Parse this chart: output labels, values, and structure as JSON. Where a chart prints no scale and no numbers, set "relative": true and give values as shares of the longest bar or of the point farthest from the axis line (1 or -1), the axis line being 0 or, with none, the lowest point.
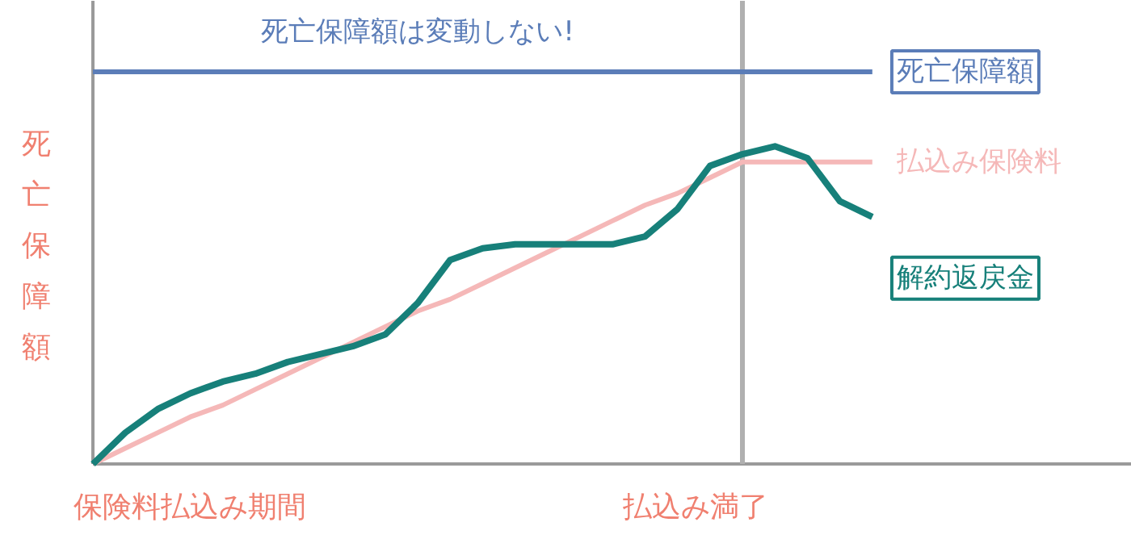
{
  "chart_data": {
    "type": "line",
    "relative": true,
    "ylabel": "死亡保障額",
    "xlabel": "保険料払込み期間",
    "annotations": [
      "死亡保障額は変動しない!",
      "払込み満了"
    ],
    "categories": [
      null,
      null,
      null,
      null,
      null,
      null,
      null,
      null,
      null,
      null,
      null,
      null,
      null,
      null,
      null,
      null,
      null,
      null,
      null,
      null,
      null,
      null,
      null,
      null,
      null
    ],
    "series": [
      {
        "name": "死亡保障額",
        "color": "#5b7db8",
        "values": [
          1,
          1,
          1,
          1,
          1,
          1,
          1,
          1,
          1,
          1,
          1,
          1,
          1,
          1,
          1,
          1,
          1,
          1,
          1,
          1,
          1,
          1,
          1,
          1,
          1
        ]
      },
      {
        "name": "払込み保険料",
        "color": "#f5b8b8",
        "values": [
          0,
          0.04,
          0.08,
          0.12,
          0.15,
          0.19,
          0.23,
          0.27,
          0.31,
          0.35,
          0.39,
          0.42,
          0.46,
          0.5,
          0.54,
          0.58,
          0.62,
          0.66,
          0.69,
          0.73,
          0.77,
          0.77,
          0.77,
          0.77,
          0.77
        ]
      },
      {
        "name": "解約返戻金",
        "color": "#17807a",
        "values": [
          0,
          0.08,
          0.14,
          0.18,
          0.21,
          0.23,
          0.26,
          0.28,
          0.3,
          0.33,
          0.41,
          0.52,
          0.55,
          0.56,
          0.56,
          0.56,
          0.56,
          0.58,
          0.65,
          0.76,
          0.79,
          0.81,
          0.78,
          0.67,
          0.63
        ]
      }
    ]
  }
}
